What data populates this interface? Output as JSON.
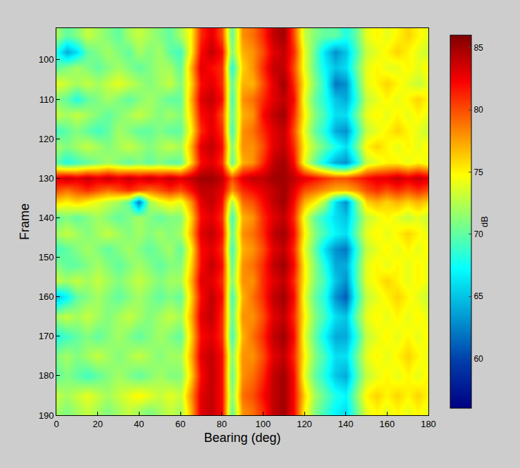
{
  "chart_data": {
    "type": "heatmap",
    "x_label": "Bearing (deg)",
    "y_label": "Frame",
    "x": [
      0,
      5,
      10,
      15,
      20,
      25,
      30,
      35,
      40,
      45,
      50,
      55,
      60,
      65,
      70,
      75,
      80,
      85,
      90,
      95,
      100,
      105,
      110,
      115,
      120,
      125,
      130,
      135,
      140,
      145,
      150,
      155,
      160,
      165,
      170,
      175,
      180
    ],
    "y": [
      94,
      98,
      102,
      106,
      110,
      114,
      118,
      122,
      126,
      130,
      133,
      136,
      140,
      144,
      148,
      152,
      156,
      160,
      165,
      170,
      175,
      180,
      185,
      189
    ],
    "z": [
      [
        72,
        70,
        71,
        73,
        72,
        71,
        70,
        72,
        73,
        72,
        71,
        70,
        72,
        75,
        81,
        83,
        80,
        70,
        78,
        79,
        81,
        84,
        85,
        80,
        73,
        71,
        70,
        70,
        68,
        70,
        74,
        75,
        74,
        75,
        76,
        75,
        74
      ],
      [
        68,
        64,
        66,
        70,
        71,
        72,
        71,
        70,
        72,
        71,
        72,
        70,
        69,
        75,
        82,
        84,
        82,
        71,
        77,
        78,
        80,
        83,
        84,
        81,
        74,
        70,
        66,
        63,
        65,
        69,
        73,
        74,
        75,
        76,
        75,
        74,
        73
      ],
      [
        70,
        71,
        72,
        71,
        70,
        71,
        72,
        71,
        70,
        71,
        72,
        72,
        70,
        77,
        83,
        82,
        81,
        68,
        76,
        78,
        81,
        84,
        84,
        80,
        74,
        70,
        67,
        65,
        66,
        70,
        74,
        75,
        74,
        74,
        75,
        74,
        75
      ],
      [
        74,
        73,
        72,
        73,
        72,
        73,
        74,
        73,
        72,
        71,
        72,
        73,
        71,
        76,
        82,
        83,
        81,
        70,
        77,
        77,
        80,
        83,
        85,
        81,
        75,
        71,
        68,
        62,
        63,
        69,
        74,
        75,
        76,
        75,
        74,
        73,
        74
      ],
      [
        71,
        70,
        68,
        70,
        71,
        72,
        71,
        70,
        71,
        72,
        71,
        70,
        70,
        77,
        83,
        84,
        82,
        69,
        78,
        79,
        81,
        83,
        84,
        82,
        74,
        70,
        68,
        65,
        64,
        68,
        73,
        74,
        75,
        74,
        75,
        76,
        75
      ],
      [
        73,
        72,
        73,
        72,
        71,
        70,
        71,
        72,
        73,
        72,
        71,
        72,
        71,
        76,
        82,
        83,
        80,
        70,
        77,
        78,
        82,
        84,
        85,
        81,
        75,
        71,
        69,
        66,
        66,
        70,
        74,
        75,
        74,
        75,
        74,
        75,
        74
      ],
      [
        69,
        70,
        71,
        70,
        69,
        70,
        72,
        71,
        70,
        70,
        71,
        70,
        70,
        75,
        81,
        83,
        81,
        69,
        78,
        79,
        81,
        83,
        84,
        80,
        74,
        70,
        68,
        64,
        63,
        68,
        73,
        74,
        75,
        76,
        75,
        74,
        73
      ],
      [
        72,
        71,
        72,
        73,
        72,
        71,
        72,
        73,
        72,
        71,
        72,
        73,
        72,
        77,
        83,
        84,
        82,
        71,
        78,
        78,
        80,
        83,
        84,
        81,
        75,
        72,
        70,
        68,
        66,
        70,
        75,
        76,
        75,
        74,
        75,
        74,
        75
      ],
      [
        70,
        68,
        69,
        70,
        71,
        72,
        71,
        70,
        71,
        70,
        71,
        70,
        70,
        76,
        82,
        83,
        81,
        70,
        77,
        78,
        81,
        84,
        85,
        82,
        74,
        70,
        67,
        64,
        63,
        67,
        73,
        74,
        75,
        75,
        74,
        75,
        74
      ],
      [
        83,
        84,
        83,
        84,
        83,
        84,
        83,
        84,
        83,
        84,
        83,
        84,
        83,
        84,
        85,
        85,
        84,
        80,
        83,
        84,
        84,
        85,
        85,
        84,
        83,
        82,
        81,
        80,
        80,
        81,
        82,
        83,
        83,
        84,
        83,
        84,
        83
      ],
      [
        80,
        79,
        80,
        81,
        80,
        79,
        80,
        81,
        80,
        79,
        80,
        81,
        80,
        82,
        84,
        84,
        83,
        78,
        81,
        82,
        83,
        84,
        85,
        83,
        80,
        79,
        78,
        77,
        77,
        78,
        80,
        81,
        80,
        81,
        80,
        81,
        80
      ],
      [
        76,
        75,
        76,
        75,
        74,
        73,
        72,
        70,
        62,
        72,
        74,
        75,
        74,
        78,
        83,
        84,
        82,
        72,
        79,
        80,
        82,
        84,
        85,
        82,
        77,
        75,
        72,
        66,
        63,
        70,
        76,
        77,
        76,
        77,
        76,
        77,
        76
      ],
      [
        70,
        71,
        70,
        71,
        72,
        71,
        70,
        71,
        72,
        71,
        70,
        71,
        71,
        76,
        82,
        83,
        81,
        69,
        77,
        78,
        81,
        83,
        84,
        81,
        74,
        70,
        68,
        66,
        65,
        69,
        73,
        74,
        75,
        74,
        73,
        74,
        73
      ],
      [
        72,
        73,
        72,
        71,
        72,
        73,
        72,
        71,
        72,
        71,
        72,
        71,
        72,
        77,
        83,
        84,
        82,
        70,
        78,
        79,
        81,
        84,
        85,
        82,
        75,
        71,
        69,
        67,
        66,
        70,
        74,
        75,
        74,
        75,
        76,
        75,
        74
      ],
      [
        69,
        70,
        71,
        72,
        71,
        70,
        71,
        72,
        71,
        70,
        71,
        72,
        70,
        75,
        82,
        83,
        81,
        69,
        77,
        78,
        80,
        83,
        84,
        81,
        74,
        70,
        66,
        63,
        62,
        68,
        73,
        74,
        75,
        74,
        75,
        74,
        75
      ],
      [
        71,
        70,
        70,
        71,
        72,
        71,
        70,
        71,
        72,
        71,
        70,
        71,
        71,
        76,
        82,
        84,
        82,
        70,
        78,
        79,
        81,
        84,
        85,
        82,
        75,
        71,
        68,
        64,
        64,
        69,
        74,
        75,
        74,
        75,
        74,
        75,
        74
      ],
      [
        73,
        72,
        73,
        72,
        73,
        72,
        71,
        72,
        73,
        72,
        71,
        72,
        72,
        77,
        83,
        83,
        81,
        71,
        78,
        78,
        81,
        83,
        84,
        81,
        75,
        71,
        69,
        65,
        63,
        69,
        74,
        75,
        76,
        75,
        74,
        75,
        74
      ],
      [
        65,
        67,
        70,
        71,
        72,
        71,
        70,
        71,
        72,
        71,
        70,
        71,
        70,
        76,
        82,
        84,
        82,
        69,
        77,
        79,
        81,
        84,
        85,
        82,
        74,
        70,
        68,
        63,
        61,
        68,
        73,
        74,
        75,
        76,
        75,
        74,
        73
      ],
      [
        72,
        73,
        72,
        73,
        72,
        71,
        72,
        73,
        72,
        71,
        72,
        73,
        72,
        77,
        83,
        84,
        81,
        70,
        78,
        78,
        80,
        83,
        84,
        81,
        75,
        71,
        69,
        66,
        65,
        70,
        74,
        75,
        74,
        75,
        74,
        75,
        74
      ],
      [
        68,
        69,
        70,
        71,
        70,
        71,
        72,
        71,
        70,
        71,
        72,
        71,
        70,
        76,
        82,
        83,
        81,
        69,
        77,
        79,
        81,
        84,
        85,
        82,
        74,
        70,
        67,
        64,
        64,
        68,
        73,
        74,
        75,
        74,
        75,
        74,
        75
      ],
      [
        71,
        72,
        71,
        72,
        73,
        72,
        71,
        72,
        73,
        72,
        71,
        72,
        72,
        77,
        83,
        84,
        82,
        71,
        78,
        78,
        80,
        83,
        84,
        81,
        75,
        71,
        69,
        66,
        66,
        70,
        74,
        75,
        74,
        75,
        76,
        75,
        74
      ],
      [
        70,
        71,
        70,
        69,
        70,
        71,
        72,
        71,
        70,
        71,
        72,
        71,
        71,
        76,
        82,
        84,
        82,
        70,
        78,
        79,
        81,
        84,
        85,
        82,
        74,
        70,
        68,
        65,
        64,
        69,
        73,
        74,
        75,
        74,
        75,
        74,
        75
      ],
      [
        73,
        72,
        73,
        74,
        73,
        72,
        73,
        74,
        75,
        74,
        73,
        74,
        73,
        78,
        83,
        84,
        82,
        71,
        79,
        80,
        82,
        84,
        85,
        82,
        76,
        72,
        70,
        68,
        67,
        71,
        75,
        76,
        75,
        76,
        75,
        76,
        75
      ],
      [
        72,
        71,
        72,
        73,
        72,
        71,
        72,
        73,
        72,
        71,
        72,
        73,
        72,
        77,
        83,
        84,
        82,
        70,
        78,
        79,
        81,
        84,
        85,
        82,
        75,
        71,
        69,
        67,
        66,
        70,
        74,
        75,
        74,
        75,
        74,
        75,
        74
      ]
    ],
    "xlim": [
      0,
      180
    ],
    "xticks": [
      0,
      20,
      40,
      60,
      80,
      100,
      120,
      140,
      160,
      180
    ],
    "ylim": [
      92,
      190
    ],
    "yticks": [
      100,
      110,
      120,
      130,
      140,
      150,
      160,
      170,
      180,
      190
    ],
    "colorbar": {
      "title": "dB",
      "range": [
        56,
        86
      ],
      "ticks": [
        60,
        65,
        70,
        75,
        80,
        85
      ]
    }
  }
}
